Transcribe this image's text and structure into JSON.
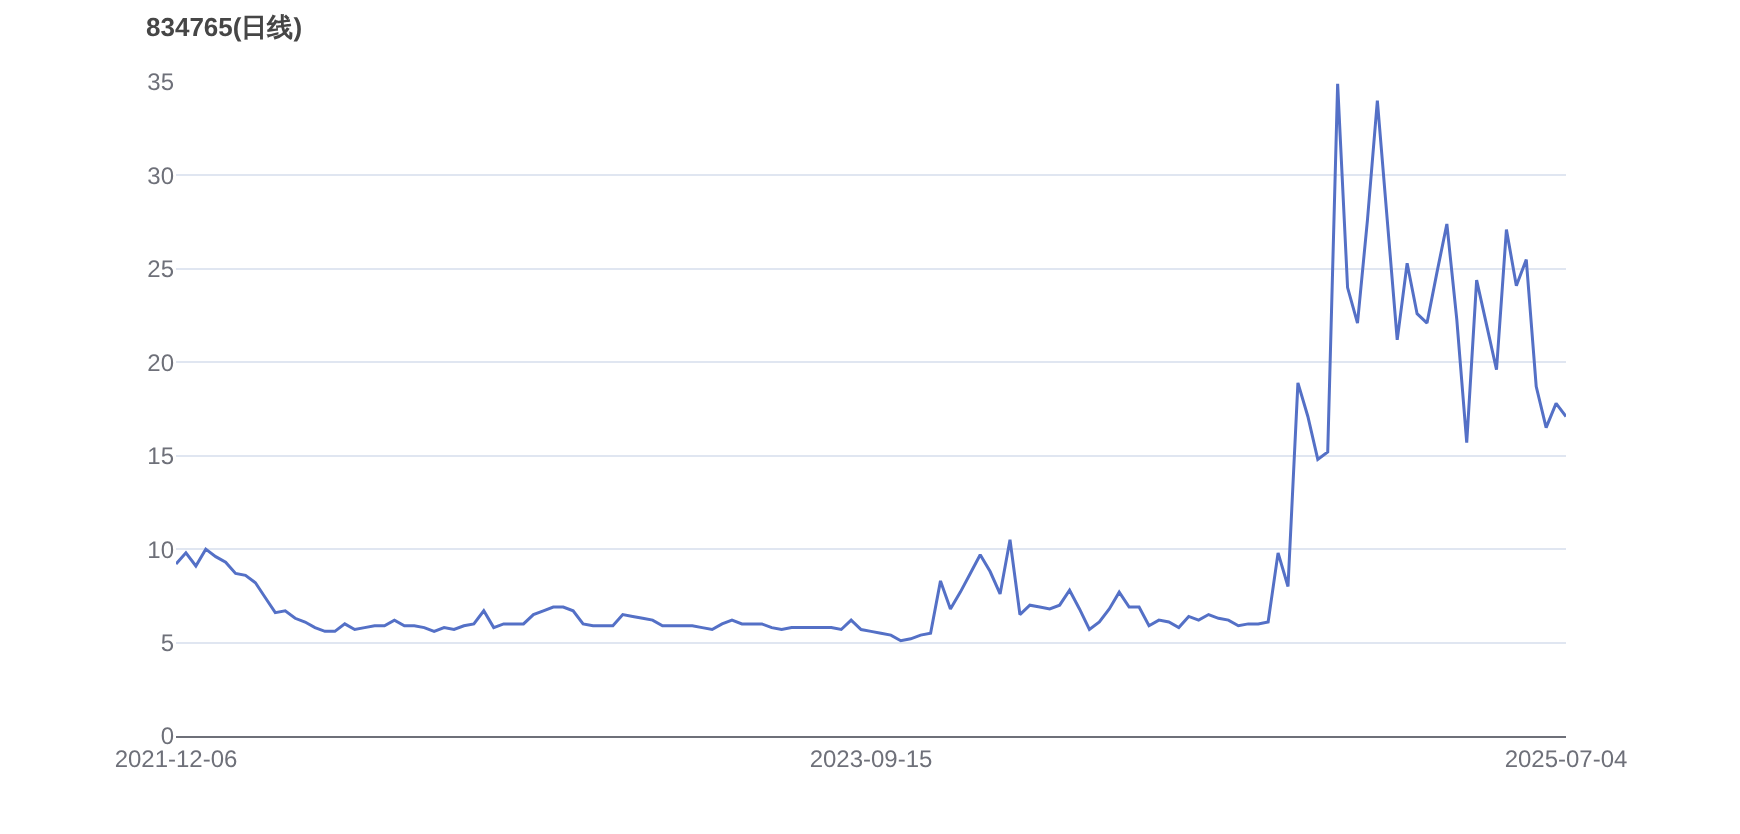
{
  "chart_data": {
    "type": "line",
    "title": "834765(日线)",
    "categories": [
      "2021-12-06",
      null,
      null,
      null,
      null,
      null,
      null,
      null,
      null,
      null,
      null,
      null,
      null,
      null,
      null,
      null,
      null,
      null,
      null,
      null,
      null,
      null,
      null,
      null,
      null,
      null,
      null,
      null,
      null,
      null,
      null,
      null,
      null,
      null,
      null,
      null,
      null,
      null,
      null,
      null,
      null,
      null,
      null,
      null,
      null,
      null,
      null,
      null,
      null,
      null,
      null,
      null,
      null,
      null,
      null,
      null,
      null,
      null,
      null,
      null,
      null,
      null,
      null,
      null,
      null,
      null,
      null,
      null,
      null,
      null,
      "2023-09-15",
      null,
      null,
      null,
      null,
      null,
      null,
      null,
      null,
      null,
      null,
      null,
      null,
      null,
      null,
      null,
      null,
      null,
      null,
      null,
      null,
      null,
      null,
      null,
      null,
      null,
      null,
      null,
      null,
      null,
      null,
      null,
      null,
      null,
      null,
      null,
      null,
      null,
      null,
      null,
      null,
      null,
      null,
      null,
      null,
      null,
      null,
      null,
      null,
      null,
      null,
      null,
      null,
      null,
      null,
      null,
      null,
      null,
      null,
      null,
      null,
      null,
      null,
      null,
      null,
      null,
      null,
      null,
      null,
      null,
      "2025-07-04"
    ],
    "series": [
      {
        "color": "#5470c6",
        "values": [
          9.2,
          9.8,
          9.1,
          10.0,
          9.6,
          9.3,
          8.7,
          8.6,
          8.2,
          7.4,
          6.6,
          6.7,
          6.3,
          6.1,
          5.8,
          5.6,
          5.6,
          6.0,
          5.7,
          5.8,
          5.9,
          5.9,
          6.2,
          5.9,
          5.9,
          5.8,
          5.6,
          5.8,
          5.7,
          5.9,
          6.0,
          6.7,
          5.8,
          6.0,
          6.0,
          6.0,
          6.5,
          6.7,
          6.9,
          6.9,
          6.7,
          6.0,
          5.9,
          5.9,
          5.9,
          6.5,
          6.4,
          6.3,
          6.2,
          5.9,
          5.9,
          5.9,
          5.9,
          5.8,
          5.7,
          6.0,
          6.2,
          6.0,
          6.0,
          6.0,
          5.8,
          5.7,
          5.8,
          5.8,
          5.8,
          5.8,
          5.8,
          5.7,
          6.2,
          5.7,
          5.6,
          5.5,
          5.4,
          5.1,
          5.2,
          5.4,
          5.5,
          8.3,
          6.8,
          7.7,
          8.7,
          9.7,
          8.8,
          7.6,
          10.5,
          6.5,
          7.0,
          6.9,
          6.8,
          7.0,
          7.8,
          6.8,
          5.7,
          6.1,
          6.8,
          7.7,
          6.9,
          6.9,
          5.9,
          6.2,
          6.1,
          5.8,
          6.4,
          6.2,
          6.5,
          6.3,
          6.2,
          5.9,
          6.0,
          6.0,
          6.1,
          9.8,
          8.0,
          18.9,
          17.1,
          14.8,
          15.2,
          34.9,
          24.0,
          22.1,
          27.6,
          34.0,
          27.6,
          21.2,
          25.3,
          22.6,
          22.1,
          24.8,
          27.4,
          22.3,
          15.7,
          24.4,
          22.0,
          19.6,
          27.1,
          24.1,
          25.5,
          18.7,
          16.5,
          17.8,
          17.1
        ]
      }
    ],
    "ylim": [
      0,
      35
    ],
    "yticks": [
      0,
      5,
      10,
      15,
      20,
      25,
      30,
      35
    ],
    "grid": "y",
    "marker": "none",
    "line_style": "solid"
  }
}
